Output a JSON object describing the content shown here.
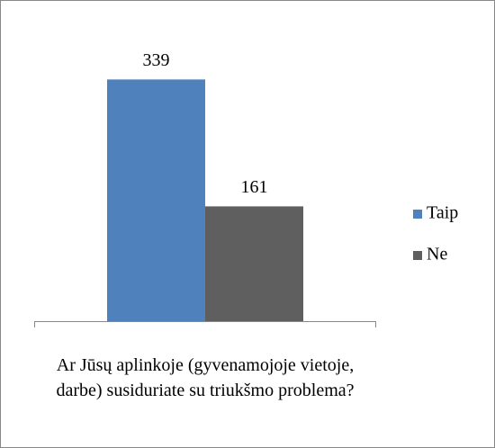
{
  "chart_data": {
    "type": "bar",
    "categories": [
      "Ar Jūsų aplinkoje (gyvenamojoje vietoje, darbe) susiduriate su triukšmo problema?"
    ],
    "series": [
      {
        "name": "Taip",
        "color": "#4f81bd",
        "values": [
          339
        ]
      },
      {
        "name": "Ne",
        "color": "#5f5f5f",
        "values": [
          161
        ]
      }
    ],
    "ylim": [
      0,
      400
    ],
    "legend": "right"
  }
}
